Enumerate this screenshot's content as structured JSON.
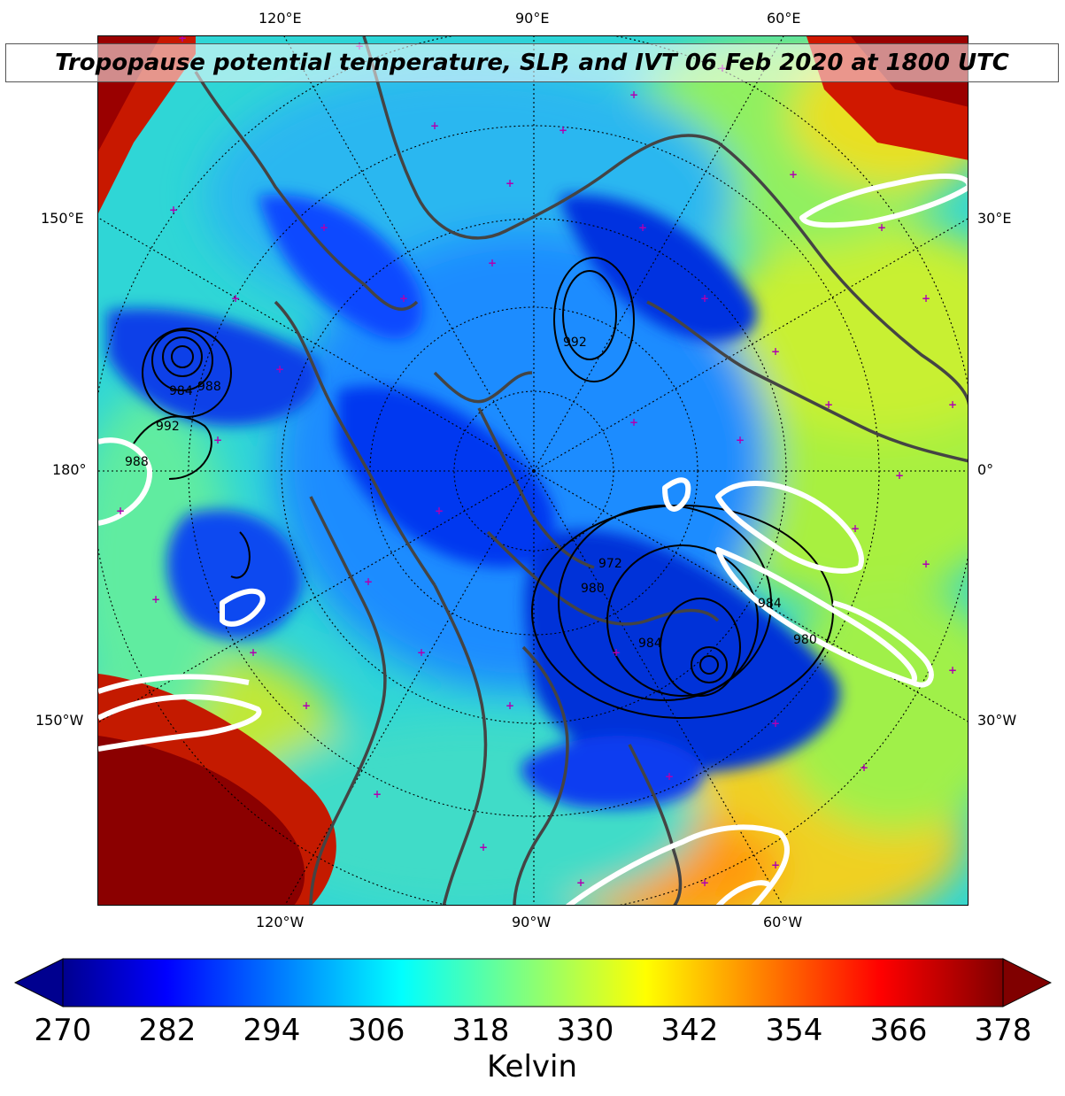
{
  "title": "Tropopause potential temperature, SLP, and IVT 06 Feb 2020 at 1800 UTC",
  "top_longitude_labels": [
    "120°E",
    "90°E",
    "60°E"
  ],
  "bottom_longitude_labels": [
    "120°W",
    "90°W",
    "60°W"
  ],
  "left_longitude_labels": [
    "150°E",
    "180°",
    "150°W"
  ],
  "right_longitude_labels": [
    "30°E",
    "0°",
    "30°W"
  ],
  "slp_contour_labels": [
    "984",
    "988",
    "992",
    "988",
    "972",
    "980",
    "984",
    "984",
    "980",
    "992"
  ],
  "colorbar": {
    "ticks": [
      "270",
      "282",
      "294",
      "306",
      "318",
      "330",
      "342",
      "354",
      "366",
      "378"
    ],
    "min": 270,
    "max": 378,
    "colormap": "jet",
    "units": "Kelvin",
    "extend": "both"
  },
  "colors": {
    "cold_core": "#0018d8",
    "trough": "#0a5cff",
    "mid": "#19c6f0",
    "ridge": "#8ff04a",
    "warm": "#ffd000",
    "hot": "#e02000",
    "max": "#8b0000",
    "slp_contour": "#000000",
    "ivt_contour": "#ffffff",
    "coastline": "#444444",
    "station_marker": "#b000b0"
  }
}
